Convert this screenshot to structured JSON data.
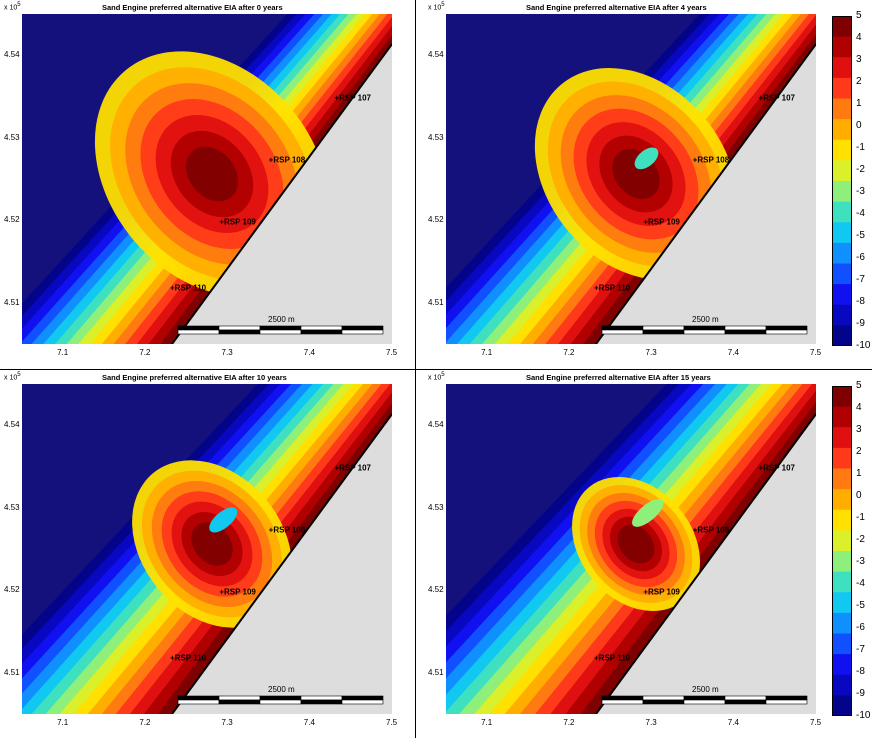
{
  "chart_data": [
    {
      "type": "heatmap",
      "title": "Sand Engine preferred alternative EIA after 0 years",
      "years": 0,
      "x_ticks": [
        "7.1",
        "7.2",
        "7.3",
        "7.4",
        "7.5"
      ],
      "y_ticks": [
        "4.54",
        "4.53",
        "4.52",
        "4.51"
      ],
      "y_exponent_base": "x 10",
      "y_exponent": "5",
      "xlim": [
        7.05,
        7.5
      ],
      "ylim": [
        450500,
        454500
      ],
      "stations": [
        {
          "label": "RSP 107",
          "x": 7.43,
          "y": 453450
        },
        {
          "label": "RSP 108",
          "x": 7.35,
          "y": 452700
        },
        {
          "label": "RSP 109",
          "x": 7.29,
          "y": 451950
        },
        {
          "label": "RSP 110",
          "x": 7.23,
          "y": 451150
        }
      ],
      "scalebar_label": "2500 m",
      "colorbar": false
    },
    {
      "type": "heatmap",
      "title": "Sand Engine preferred alternative EIA after 4 years",
      "years": 4,
      "x_ticks": [
        "7.1",
        "7.2",
        "7.3",
        "7.4",
        "7.5"
      ],
      "y_ticks": [
        "4.54",
        "4.53",
        "4.52",
        "4.51"
      ],
      "y_exponent_base": "x 10",
      "y_exponent": "5",
      "xlim": [
        7.05,
        7.5
      ],
      "ylim": [
        450500,
        454500
      ],
      "stations": [
        {
          "label": "RSP 107",
          "x": 7.43,
          "y": 453450
        },
        {
          "label": "RSP 108",
          "x": 7.35,
          "y": 452700
        },
        {
          "label": "RSP 109",
          "x": 7.29,
          "y": 451950
        },
        {
          "label": "RSP 110",
          "x": 7.23,
          "y": 451150
        }
      ],
      "scalebar_label": "2500 m",
      "colorbar": true
    },
    {
      "type": "heatmap",
      "title": "Sand Engine preferred alternative EIA after 10 years",
      "years": 10,
      "x_ticks": [
        "7.1",
        "7.2",
        "7.3",
        "7.4",
        "7.5"
      ],
      "y_ticks": [
        "4.54",
        "4.53",
        "4.52",
        "4.51"
      ],
      "y_exponent_base": "x 10",
      "y_exponent": "5",
      "xlim": [
        7.05,
        7.5
      ],
      "ylim": [
        450500,
        454500
      ],
      "stations": [
        {
          "label": "RSP 107",
          "x": 7.43,
          "y": 453450
        },
        {
          "label": "RSP 108",
          "x": 7.35,
          "y": 452700
        },
        {
          "label": "RSP 109",
          "x": 7.29,
          "y": 451950
        },
        {
          "label": "RSP 110",
          "x": 7.23,
          "y": 451150
        }
      ],
      "scalebar_label": "2500 m",
      "colorbar": false
    },
    {
      "type": "heatmap",
      "title": "Sand Engine preferred alternative EIA after 15 years",
      "years": 15,
      "x_ticks": [
        "7.1",
        "7.2",
        "7.3",
        "7.4",
        "7.5"
      ],
      "y_ticks": [
        "4.54",
        "4.53",
        "4.52",
        "4.51"
      ],
      "y_exponent_base": "x 10",
      "y_exponent": "5",
      "xlim": [
        7.05,
        7.5
      ],
      "ylim": [
        450500,
        454500
      ],
      "stations": [
        {
          "label": "RSP 107",
          "x": 7.43,
          "y": 453450
        },
        {
          "label": "RSP 108",
          "x": 7.35,
          "y": 452700
        },
        {
          "label": "RSP 109",
          "x": 7.29,
          "y": 451950
        },
        {
          "label": "RSP 110",
          "x": 7.23,
          "y": 451150
        }
      ],
      "scalebar_label": "2500 m",
      "colorbar": true
    }
  ],
  "colorbar": {
    "ticks": [
      "5",
      "4",
      "3",
      "2",
      "1",
      "0",
      "-1",
      "-2",
      "-3",
      "-4",
      "-5",
      "-6",
      "-7",
      "-8",
      "-9",
      "-10"
    ],
    "colors": [
      "#7f0000",
      "#b00000",
      "#e01010",
      "#ff3a1a",
      "#ff7a10",
      "#ffae00",
      "#ffe000",
      "#d9f02a",
      "#8ef07a",
      "#3ee0c0",
      "#10c8f0",
      "#1090ff",
      "#1050ff",
      "#1010f0",
      "#0808c0",
      "#04048a"
    ]
  },
  "colors": {
    "deep": "#14107c",
    "land": "#dddddd",
    "shore_line": "#000000"
  }
}
